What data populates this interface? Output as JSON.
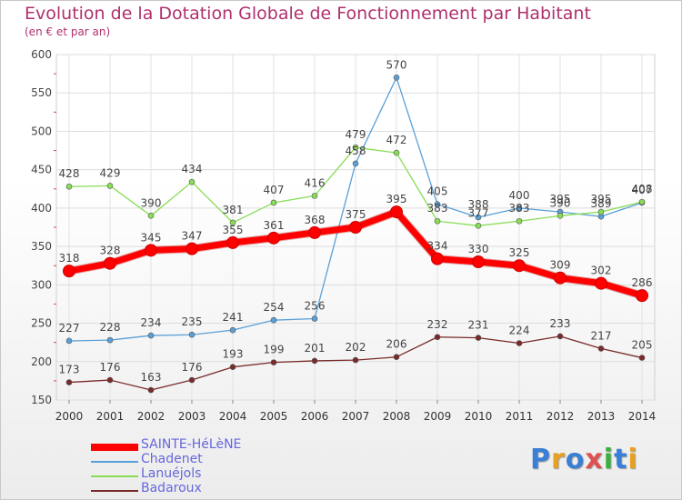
{
  "title": "Evolution de la Dotation Globale de Fonctionnement par Habitant",
  "subtitle": "(en € et par an)",
  "logo": {
    "text": "Proxiti",
    "letter_colors": [
      "#3a7fd5",
      "#e8a020",
      "#3a7fd5",
      "#e05050",
      "#3ab040",
      "#3a7fd5",
      "#e8a020"
    ]
  },
  "chart_data": {
    "type": "line",
    "title": "Evolution de la Dotation Globale de Fonctionnement par Habitant",
    "subtitle": "(en € et par an)",
    "x": [
      "2000",
      "2001",
      "2002",
      "2003",
      "2004",
      "2005",
      "2006",
      "2007",
      "2008",
      "2009",
      "2010",
      "2011",
      "2012",
      "2013",
      "2014"
    ],
    "ylim": [
      150,
      600
    ],
    "yticks": [
      150,
      200,
      250,
      300,
      350,
      400,
      450,
      500,
      550,
      600
    ],
    "grid": true,
    "legend_position": "bottom-left",
    "series": [
      {
        "name": "SAINTE-HéLèNE",
        "color": "#ff0000",
        "emphasis": true,
        "values": [
          318,
          328,
          345,
          347,
          355,
          361,
          368,
          375,
          395,
          334,
          330,
          325,
          309,
          302,
          286
        ]
      },
      {
        "name": "Chadenet",
        "color": "#5aa0d8",
        "values": [
          227,
          228,
          234,
          235,
          241,
          254,
          256,
          458,
          570,
          405,
          388,
          400,
          395,
          389,
          407
        ]
      },
      {
        "name": "Lanuéjols",
        "color": "#88dd55",
        "values": [
          428,
          429,
          390,
          434,
          381,
          407,
          416,
          479,
          472,
          383,
          377,
          383,
          390,
          395,
          408
        ]
      },
      {
        "name": "Badaroux",
        "color": "#7a2a2a",
        "values": [
          173,
          176,
          163,
          176,
          193,
          199,
          201,
          202,
          206,
          232,
          231,
          224,
          233,
          217,
          205
        ]
      }
    ]
  }
}
